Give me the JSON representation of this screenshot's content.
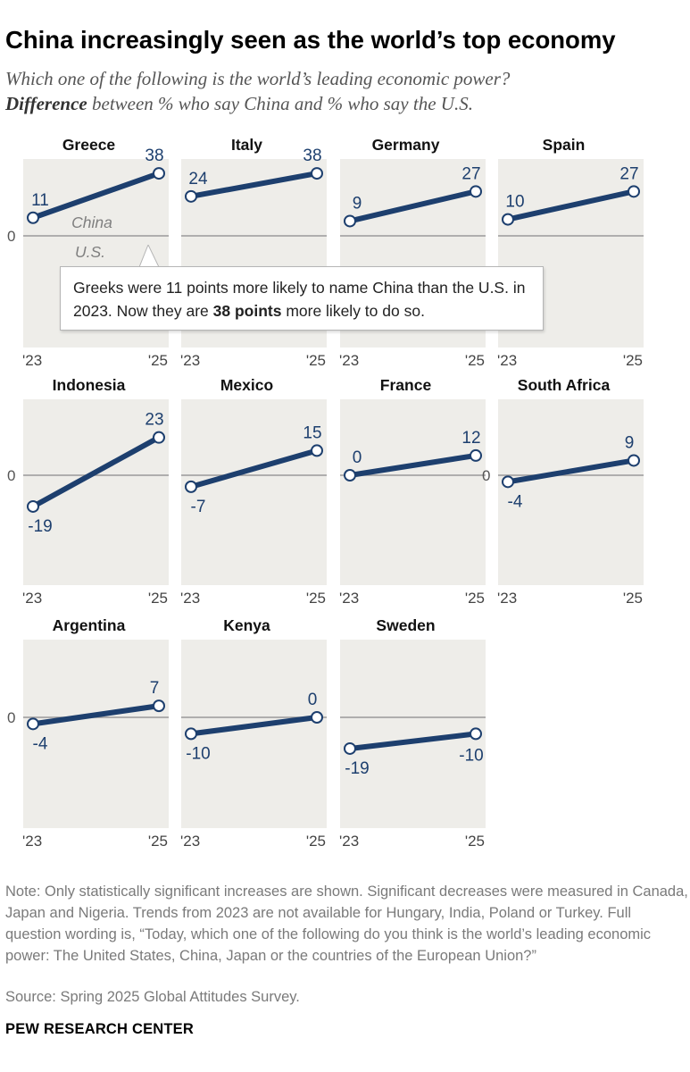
{
  "title": "China increasingly seen as the world’s top economy",
  "subtitle_line1": "Which one of the following is the world’s leading economic power?",
  "subtitle_line2_bold": "Difference",
  "subtitle_line2_rest": " between % who say China and % who say the U.S.",
  "colors": {
    "line": "#1d3f6e",
    "panel_bg": "#eeede9",
    "baseline": "#9a9a9a",
    "axis_text": "#1d3f6e",
    "annotation": "#7f7f7f"
  },
  "chart_data": {
    "type": "line",
    "x": [
      "'23",
      "'25"
    ],
    "ylim": [
      -23,
      45
    ],
    "baseline_value": 0,
    "baseline_label": "0",
    "grid": false,
    "series": [
      {
        "name": "Greece",
        "values": [
          11,
          38
        ]
      },
      {
        "name": "Italy",
        "values": [
          24,
          38
        ]
      },
      {
        "name": "Germany",
        "values": [
          9,
          27
        ]
      },
      {
        "name": "Spain",
        "values": [
          10,
          27
        ]
      },
      {
        "name": "Indonesia",
        "values": [
          -19,
          23
        ]
      },
      {
        "name": "Mexico",
        "values": [
          -7,
          15
        ]
      },
      {
        "name": "France",
        "values": [
          0,
          12
        ]
      },
      {
        "name": "South Africa",
        "values": [
          -4,
          9
        ]
      },
      {
        "name": "Argentina",
        "values": [
          -4,
          7
        ]
      },
      {
        "name": "Kenya",
        "values": [
          -10,
          0
        ]
      },
      {
        "name": "Sweden",
        "values": [
          -19,
          -10
        ]
      }
    ],
    "annotations": {
      "above_zero": "China",
      "below_zero": "U.S."
    }
  },
  "callout": {
    "text_before": "Greeks were 11 points more likely to name China than the U.S. in 2023. Now they are ",
    "text_bold": "38 points",
    "text_after": " more likely to do so."
  },
  "note": "Note: Only statistically significant increases are shown. Significant decreases were measured in Canada, Japan and Nigeria. Trends from 2023 are not available for Hungary, India, Poland or Turkey. Full question wording is, “Today, which one of the following do you think is the world’s leading economic power: The United States, China, Japan or the countries of the European Union?”",
  "source": "Source: Spring 2025 Global Attitudes Survey.",
  "footer": "PEW RESEARCH CENTER"
}
